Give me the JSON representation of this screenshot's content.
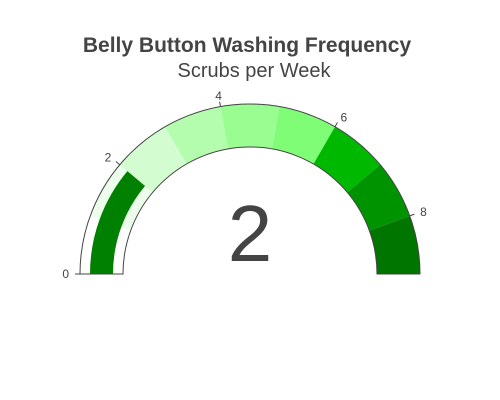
{
  "chart_data": {
    "type": "gauge",
    "title": "Belly Button Washing Frequency",
    "subtitle": "Scrubs per Week",
    "value": 2,
    "value_label": "2",
    "range": [
      0,
      9
    ],
    "ticks": [
      {
        "value": 0,
        "label": "0"
      },
      {
        "value": 2,
        "label": "2"
      },
      {
        "value": 4,
        "label": "4"
      },
      {
        "value": 6,
        "label": "6"
      },
      {
        "value": 8,
        "label": "8"
      }
    ],
    "steps": [
      {
        "range": [
          0,
          1
        ],
        "color": "#ffffff"
      },
      {
        "range": [
          1,
          2
        ],
        "color": "#edfdec"
      },
      {
        "range": [
          2,
          3
        ],
        "color": "#d3fdd0"
      },
      {
        "range": [
          3,
          4
        ],
        "color": "#b4fdae"
      },
      {
        "range": [
          4,
          5
        ],
        "color": "#99fd92"
      },
      {
        "range": [
          5,
          6
        ],
        "color": "#80fd77"
      },
      {
        "range": [
          6,
          7
        ],
        "color": "#00b800"
      },
      {
        "range": [
          7,
          8
        ],
        "color": "#009300"
      },
      {
        "range": [
          8,
          9
        ],
        "color": "#007500"
      }
    ],
    "bar_color": "#008000",
    "border_color": "#444444"
  },
  "colors": {
    "title": "#444444",
    "tick_text": "#444444",
    "value_text": "#444444"
  }
}
